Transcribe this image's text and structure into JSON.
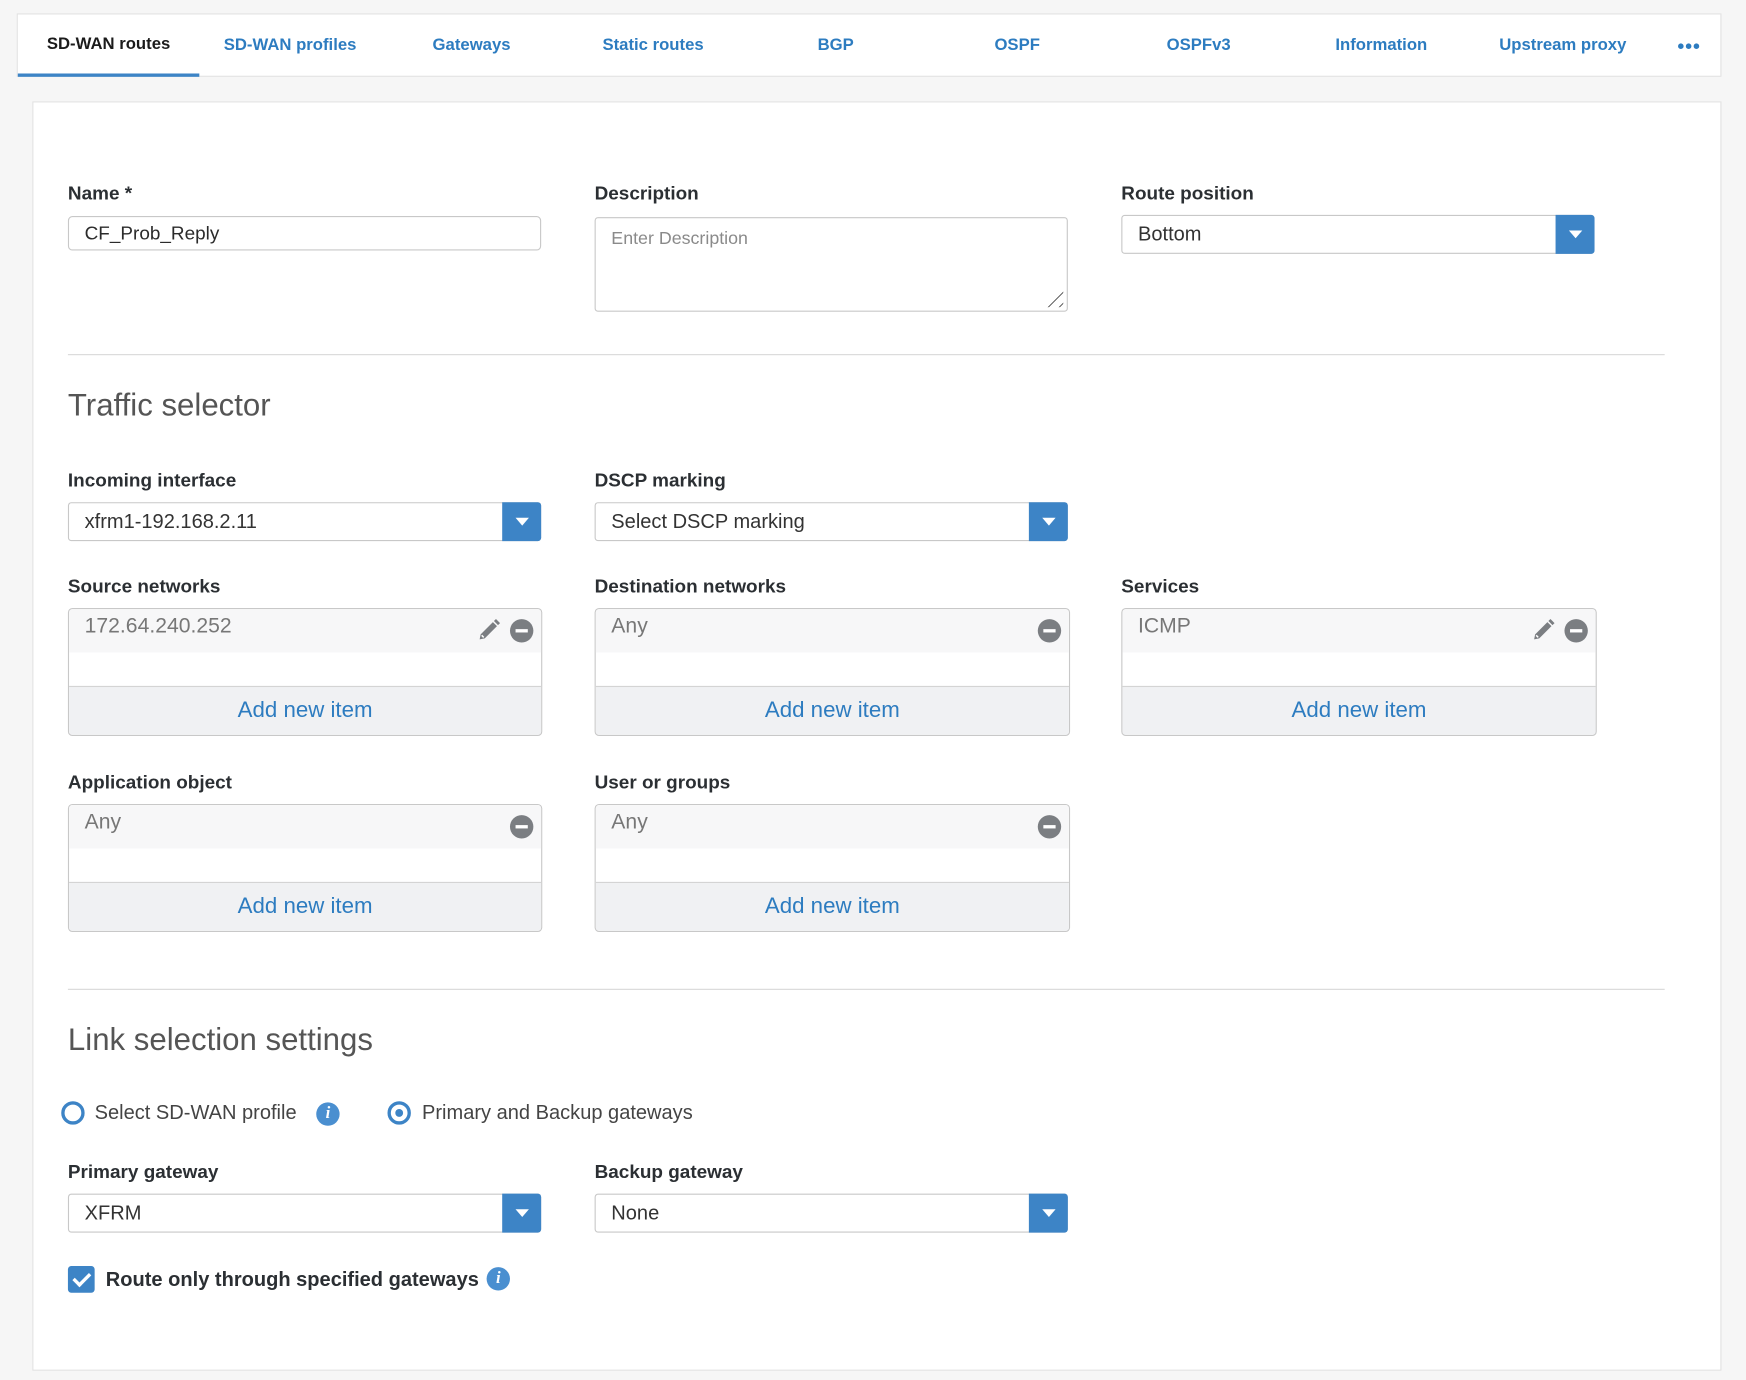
{
  "tabs": [
    {
      "label": "SD-WAN routes",
      "active": true
    },
    {
      "label": "SD-WAN profiles"
    },
    {
      "label": "Gateways"
    },
    {
      "label": "Static routes"
    },
    {
      "label": "BGP"
    },
    {
      "label": "OSPF"
    },
    {
      "label": "OSPFv3"
    },
    {
      "label": "Information"
    },
    {
      "label": "Upstream proxy"
    }
  ],
  "more_icon": "ellipsis-icon",
  "form": {
    "name": {
      "label": "Name *",
      "value": "CF_Prob_Reply"
    },
    "description": {
      "label": "Description",
      "placeholder": "Enter Description"
    },
    "route_position": {
      "label": "Route position",
      "value": "Bottom"
    }
  },
  "traffic_selector": {
    "title": "Traffic selector",
    "incoming_interface": {
      "label": "Incoming interface",
      "value": "xfrm1-192.168.2.11"
    },
    "dscp_marking": {
      "label": "DSCP marking",
      "value": "Select DSCP marking"
    },
    "source_networks": {
      "label": "Source networks",
      "item": "172.64.240.252",
      "add": "Add new item"
    },
    "destination_networks": {
      "label": "Destination networks",
      "item": "Any",
      "add": "Add new item"
    },
    "services": {
      "label": "Services",
      "item": "ICMP",
      "add": "Add new item"
    },
    "application_object": {
      "label": "Application object",
      "item": "Any",
      "add": "Add new item"
    },
    "user_or_groups": {
      "label": "User or groups",
      "item": "Any",
      "add": "Add new item"
    }
  },
  "link_selection": {
    "title": "Link selection settings",
    "radio_sdwan": {
      "label": "Select SD-WAN profile",
      "selected": false
    },
    "radio_gateways": {
      "label": "Primary and Backup gateways",
      "selected": true
    },
    "primary_gateway": {
      "label": "Primary gateway",
      "value": "XFRM"
    },
    "backup_gateway": {
      "label": "Backup gateway",
      "value": "None"
    },
    "route_only": {
      "label": "Route only through specified gateways",
      "checked": true
    },
    "info_glyph": "i"
  },
  "colors": {
    "accent": "#3d84c6",
    "link": "#2d7cc0"
  }
}
